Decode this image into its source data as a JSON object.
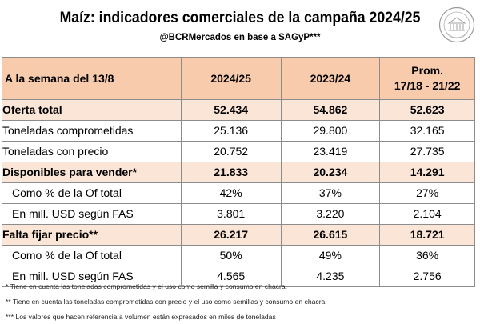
{
  "title": "Maíz: indicadores comerciales de la campaña 2024/25",
  "subtitle": "@BCRMercados en base a SAGyP***",
  "colors": {
    "header_bg": "#f8cbad",
    "highlight_bg": "#fbe5d6",
    "border": "#8c8c8c"
  },
  "table": {
    "headers": {
      "label": "A la semana del 13/8",
      "col1": "2024/25",
      "col2": "2023/24",
      "col3_line1": "Prom.",
      "col3_line2": "17/18 - 21/22"
    },
    "rows": [
      {
        "label": "Oferta total",
        "v1": "52.434",
        "v2": "54.862",
        "v3": "52.623"
      },
      {
        "label": "Toneladas comprometidas",
        "v1": "25.136",
        "v2": "29.800",
        "v3": "32.165"
      },
      {
        "label": "Toneladas con precio",
        "v1": "20.752",
        "v2": "23.419",
        "v3": "27.735"
      },
      {
        "label": "Disponibles para vender*",
        "v1": "21.833",
        "v2": "20.234",
        "v3": "14.291"
      },
      {
        "label": "Como % de la Of total",
        "v1": "42%",
        "v2": "37%",
        "v3": "27%"
      },
      {
        "label": "En mill. USD según FAS",
        "v1": "3.801",
        "v2": "3.220",
        "v3": "2.104"
      },
      {
        "label": "Falta fijar precio**",
        "v1": "26.217",
        "v2": "26.615",
        "v3": "18.721"
      },
      {
        "label": "Como % de la Of total",
        "v1": "50%",
        "v2": "49%",
        "v3": "36%"
      },
      {
        "label": "En mill. USD según FAS",
        "v1": "4.565",
        "v2": "4.235",
        "v3": "2.756"
      }
    ]
  },
  "notes": [
    "* Tiene en cuenta las toneladas comprometidas y el uso como semilla y consumo en chacra.",
    "** Tiene en cuenta las toneladas comprometidas con precio y el uso como semillas y consumo en chacra.",
    "*** Los valores que hacen referencia a volumen están expresados en miles de toneladas"
  ]
}
